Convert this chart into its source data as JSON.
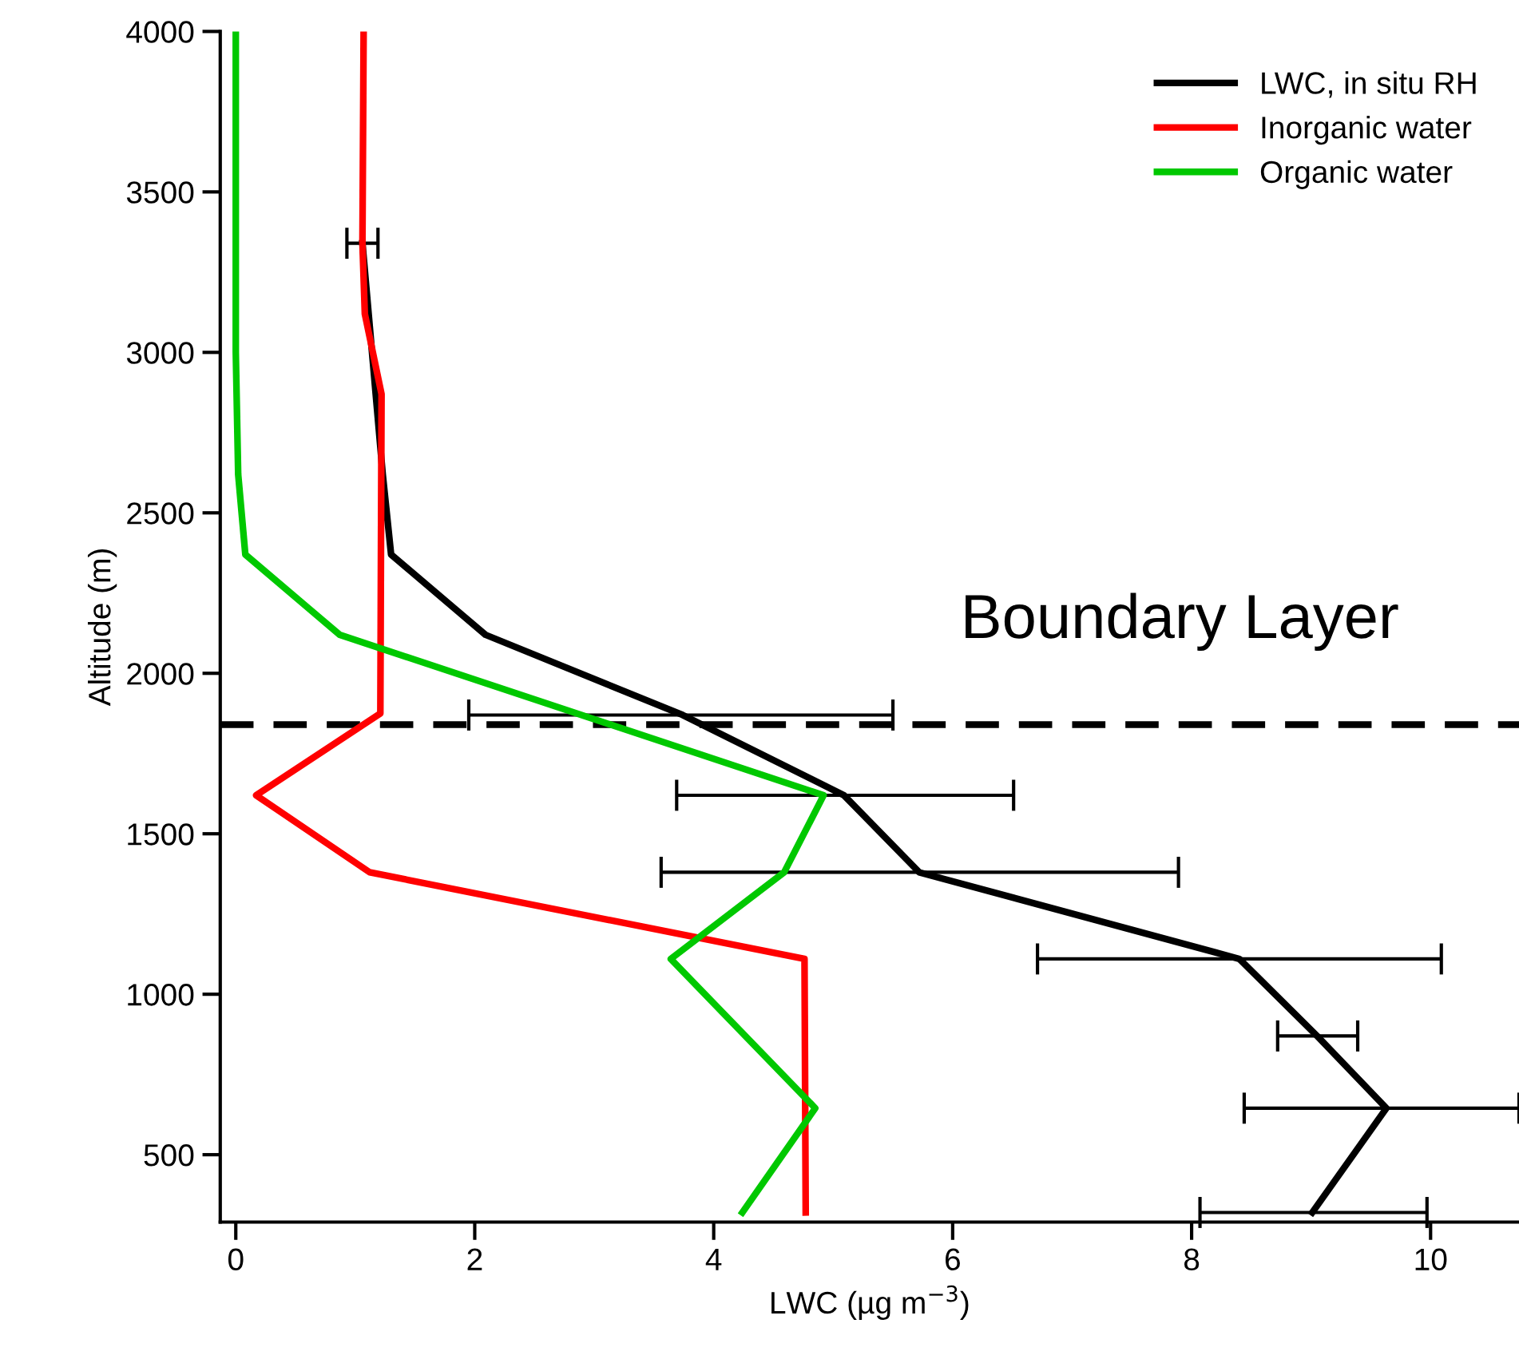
{
  "chart_data": {
    "type": "line",
    "xlabel": "LWC (µg m$^{−3}$)",
    "ylabel": "Altitude (m)",
    "xlim": [
      -0.13,
      10.74
    ],
    "ylim": [
      290,
      4000
    ],
    "xticks": [
      0,
      2,
      4,
      6,
      8,
      10
    ],
    "yticks": [
      500,
      1000,
      1500,
      2000,
      2500,
      3000,
      3500,
      4000
    ],
    "grid": false,
    "legend": "top right",
    "line_style": "solid",
    "marker": "none",
    "series": [
      {
        "name": "LWC, in situ RH",
        "color": "#000000",
        "x": [
          1.06,
          1.23,
          1.3,
          2.09,
          3.74,
          5.09,
          5.72,
          8.4,
          9.05,
          9.63,
          9.01
        ],
        "values": [
          3340,
          2620,
          2370,
          2120,
          1870,
          1620,
          1380,
          1110,
          870,
          645,
          320
        ],
        "xerrors": [
          [
            0.93,
            1.19
          ],
          null,
          null,
          null,
          [
            1.95,
            5.5
          ],
          [
            3.69,
            6.51
          ],
          [
            3.56,
            7.89
          ],
          [
            6.71,
            10.09
          ],
          [
            8.72,
            9.39
          ],
          [
            8.44,
            10.74
          ],
          [
            8.07,
            9.97
          ]
        ]
      },
      {
        "name": "Inorganic water",
        "color": "#ff0000",
        "x": [
          1.07,
          1.06,
          1.08,
          1.22,
          1.21,
          0.17,
          1.12,
          4.76,
          4.77
        ],
        "values": [
          4000,
          3340,
          3120,
          2870,
          1875,
          1620,
          1380,
          1110,
          320
        ]
      },
      {
        "name": "Organic water",
        "color": "#00c800",
        "x": [
          0.0,
          0.0,
          0.02,
          0.08,
          0.87,
          4.92,
          4.59,
          3.64,
          4.85,
          4.24
        ],
        "values": [
          4000,
          3000,
          2620,
          2370,
          2120,
          1620,
          1380,
          1110,
          645,
          320
        ]
      }
    ],
    "ref_lines": [
      {
        "axis": "y",
        "value": 1840,
        "label": "Boundary Layer",
        "color": "#000000",
        "line_style": "dashed"
      }
    ]
  }
}
